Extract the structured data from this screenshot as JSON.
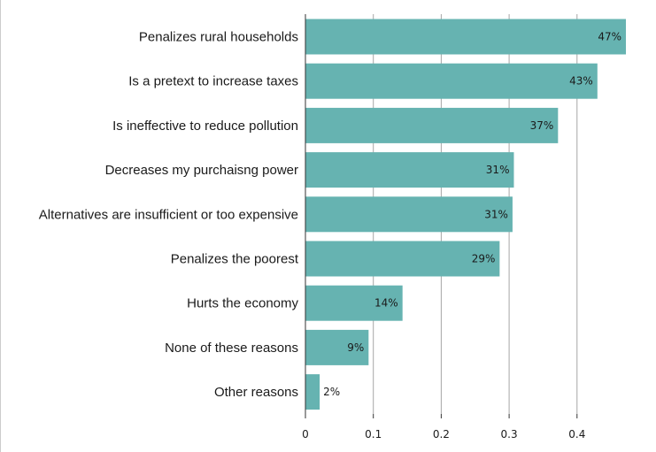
{
  "colors": {
    "bar": "#66b3b1",
    "grid": "#a6a6a6",
    "axis": "#333333",
    "text": "#1a1a1a"
  },
  "chart_data": {
    "type": "bar",
    "orientation": "horizontal",
    "categories": [
      "Penalizes rural households",
      "Is a pretext to increase taxes",
      "Is ineffective to reduce pollution",
      "Decreases my purchaisng power",
      "Alternatives are insufficient or too expensive",
      "Penalizes the poorest",
      "Hurts the economy",
      "None of these reasons",
      "Other reasons"
    ],
    "values": [
      0.472,
      0.43,
      0.372,
      0.307,
      0.305,
      0.286,
      0.143,
      0.093,
      0.021
    ],
    "data_labels": [
      "47%",
      "43%",
      "37%",
      "31%",
      "31%",
      "29%",
      "14%",
      "9%",
      "2%"
    ],
    "x_ticks": [
      0,
      0.1,
      0.2,
      0.3,
      0.4
    ],
    "x_tick_labels": [
      "0",
      "0.1",
      "0.2",
      "0.3",
      "0.4"
    ],
    "xlim": [
      0,
      0.48
    ],
    "grid": true,
    "title": "",
    "xlabel": "",
    "ylabel": ""
  }
}
